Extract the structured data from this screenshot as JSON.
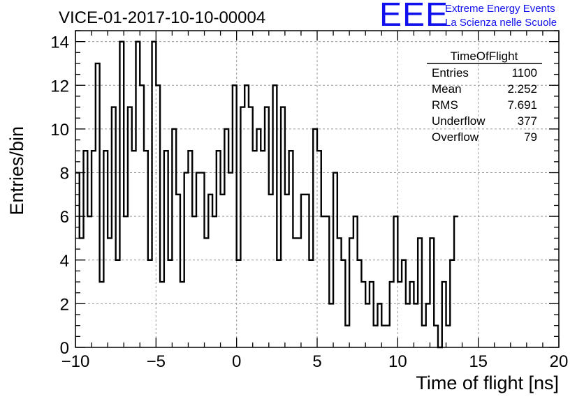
{
  "logo": {
    "mark": "EEE",
    "line1": "Extreme Energy Events",
    "line2": "La Scienza nelle Scuole",
    "color": "#1111ee"
  },
  "chart_data": {
    "type": "bar",
    "title": "VICE-01-2017-10-10-00004",
    "xlabel": "Time of flight [ns]",
    "ylabel": "Entries/bin",
    "xlim": [
      -10,
      20
    ],
    "ylim": [
      0,
      14.5
    ],
    "x_ticks": [
      -10,
      -5,
      0,
      5,
      10,
      15,
      20
    ],
    "x_tick_labels": [
      "−10",
      "−5",
      "0",
      "5",
      "10",
      "15",
      "20"
    ],
    "y_ticks": [
      0,
      2,
      4,
      6,
      8,
      10,
      12,
      14
    ],
    "y_tick_labels": [
      "0",
      "2",
      "4",
      "6",
      "8",
      "10",
      "12",
      "14"
    ],
    "grid": true,
    "bin_width": 0.25,
    "bin_edges_start": -10,
    "values": [
      8,
      5,
      9,
      6,
      9,
      13,
      3,
      9,
      5,
      11,
      4,
      14,
      6,
      11,
      9,
      14,
      12,
      9,
      4,
      14,
      12,
      3,
      9,
      4,
      10,
      7,
      3,
      8,
      9,
      6,
      8,
      8,
      5,
      7,
      6,
      9,
      7,
      10,
      8,
      12,
      4,
      11,
      12,
      11,
      9,
      10,
      9,
      11,
      7,
      12,
      4,
      11,
      7,
      9,
      5,
      5,
      7,
      7,
      4,
      10,
      9,
      6,
      6,
      2,
      8,
      5,
      4,
      1,
      5,
      6,
      4,
      3,
      2,
      3,
      1,
      2,
      1,
      1,
      3,
      6,
      3,
      4,
      2,
      3,
      2,
      5,
      1,
      2,
      5,
      1,
      0,
      3,
      1,
      4,
      6
    ],
    "line_color": "#000000",
    "stats": {
      "name": "TimeOfFlight",
      "rows": [
        {
          "label": "Entries",
          "value": "1100"
        },
        {
          "label": "Mean",
          "value": "2.252"
        },
        {
          "label": "RMS",
          "value": "7.691"
        },
        {
          "label": "Underflow",
          "value": "377"
        },
        {
          "label": "Overflow",
          "value": "79"
        }
      ]
    }
  }
}
